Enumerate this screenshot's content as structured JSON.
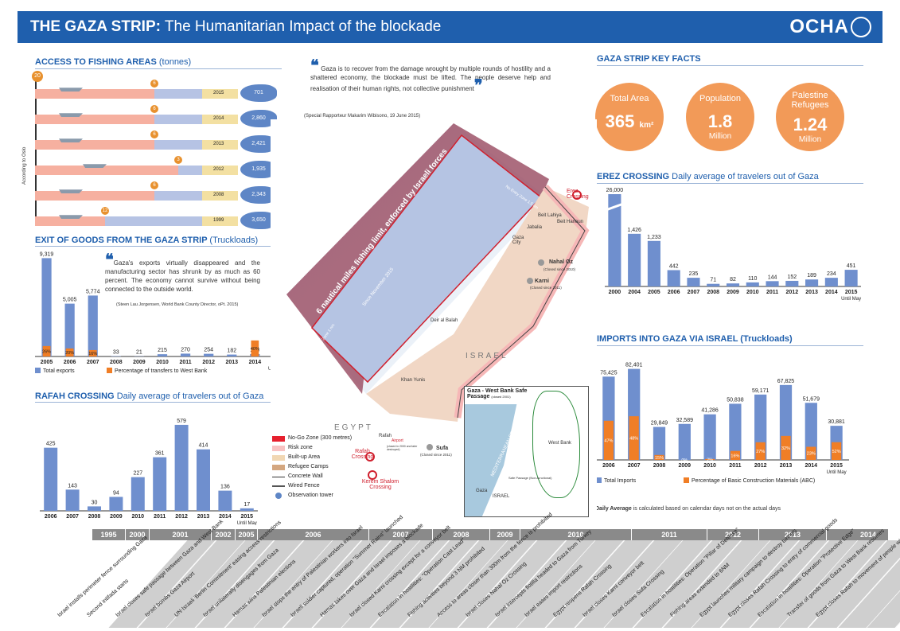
{
  "header": {
    "title_bold": "THE GAZA STRIP:",
    "title_rest": "The Humanitarian Impact of the blockade",
    "logo": "OCHA"
  },
  "fishing": {
    "title": "ACCESS TO FISHING AREAS",
    "unit": "(tonnes)",
    "ylabel": "According to Oslo",
    "start_marker": "20",
    "rows": [
      {
        "year": "2015",
        "tonnes": "701",
        "marker": "6"
      },
      {
        "year": "2014",
        "tonnes": "2,860",
        "marker": "6"
      },
      {
        "year": "2013",
        "tonnes": "2,421",
        "marker": "6"
      },
      {
        "year": "2012",
        "tonnes": "1,935",
        "marker": "3"
      },
      {
        "year": "2008",
        "tonnes": "2,343",
        "marker": "6"
      },
      {
        "year": "1999",
        "tonnes": "3,650",
        "marker": "12"
      }
    ]
  },
  "quote1": {
    "text": "Gaza is to recover from the damage wrought by multiple rounds of hostility and a shattered economy, the blockade must be lifted. The people deserve help and realisation of their human rights, not collective punishment",
    "source": "(Special Rapporteur Makarim Wibisono, 19 June 2015)"
  },
  "exit_goods": {
    "title": "EXIT OF GOODS FROM THE GAZA STRIP",
    "unit": "(Truckloads)",
    "quote": "Gaza's exports virtually disappeared and the manufacturing sector has shrunk by as much as 60 percent. The economy cannot survive without being connected to the outside world.",
    "source": "(Steen Lau Jorgensen, World Bank County Director, oPt. 2015)",
    "legend_a": "Total exports",
    "legend_b": "Percentage of transfers to West Bank",
    "until": "Until May"
  },
  "rafah": {
    "title": "RAFAH CROSSING",
    "subtitle": "Daily average of travelers out of Gaza",
    "until": "Until May"
  },
  "key_facts": {
    "title": "GAZA STRIP KEY FACTS",
    "area_label": "Total Area",
    "area_value": "365",
    "area_unit": "km²",
    "pop_label": "Population",
    "pop_value": "1.8",
    "pop_unit": "Million",
    "ref_label": "Palestine Refugees",
    "ref_value": "1.24",
    "ref_unit": "Million"
  },
  "erez": {
    "title": "EREZ CROSSING",
    "subtitle": "Daily average of travelers out of Gaza",
    "until": "Until May"
  },
  "imports": {
    "title": "IMPORTS INTO GAZA VIA ISRAEL (Truckloads)",
    "legend_a": "Total Imports",
    "legend_b": "Percentage of Basic Construction Materials (ABC)",
    "until": "Until May"
  },
  "daily_note": {
    "bold": "Daily Average",
    "rest": " is calculated based on calendar days not on the actual days"
  },
  "map": {
    "limit_label": "6 nautical miles fishing limit, enforced by Israeli forces",
    "since": "Since November 2015",
    "no_entry_top": "No Entry Zone 1.5 nm",
    "no_entry_bottom": "No Entry Zone 1 nm",
    "israel": "ISRAEL",
    "egypt": "EGYPT",
    "places": [
      "Beit Lahiya",
      "Beit Hanoun",
      "Jabalia",
      "Gaza City",
      "Deir al Balah",
      "Khan Yunis",
      "Rafah"
    ],
    "erez": "Erez Crossing",
    "nahal_oz": "Nahal Oz",
    "nahal_oz_note": "(Closed since 2010)",
    "karni": "Karni",
    "karni_note": "(Closed since 2011)",
    "sufa": "Sufa",
    "sufa_note": "(Closed since 2011)",
    "rafah_crossing": "Rafah Crossing",
    "kerem": "Kerem Shalom Crossing",
    "airport": "Airport",
    "airport_note": "(closed in 2000 and later destroyed)",
    "legend": [
      "No-Go Zone (300 metres)",
      "Risk zone",
      "Built-up Area",
      "Refugee Camps",
      "Concrete Wall",
      "Wired Fence",
      "Observation tower"
    ],
    "inset_title": "Gaza - West Bank Safe Passage",
    "inset_note": "(closed 2001)",
    "inset_sea": "MEDITERRANEAN SEA",
    "inset_wb": "West Bank",
    "inset_israel": "ISRAEL",
    "inset_gaza": "Gaza",
    "inset_route": "Safe Passage (Non-functional)"
  },
  "timeline": {
    "years": [
      "1995",
      "2000",
      "2001",
      "2002",
      "2005",
      "2006",
      "2007",
      "2008",
      "2009",
      "2010",
      "2011",
      "2012",
      "2013",
      "2014"
    ],
    "events": [
      "Israel installs perimeter fence surrounding Gaza",
      "Second intifada starts",
      "Israel closes safe passage between Gaza and West Bank",
      "Israel bombs Gaza Airport",
      "UN-Israeli 'Berlin Commitment' easing access restrictions",
      "Israel unilaterally disengages from Gaza",
      "Hamas wins Palestinian elections",
      "Israel stops the entry of Palestinian workers into Israel",
      "Israeli soldier captured, operation \"Summer Rains\" launched",
      "Hamas takes over Gaza and Israel imposes a blockade",
      "Israel closed Karni crossing except for a conveyor belt",
      "Escalation in hostilities: \"Operation Cast Lead\"",
      "Fishing activities beyond 3 NM prohibited",
      "Access to areas closer than 300m from the fence is prohibited",
      "Israel closes Nahal Oz Crossing",
      "Israel intercepts flotilla headed to Gaza from Turkey",
      "Israel eases import restrictions",
      "Egypt reopens Rafah Crossing",
      "Israel closes Karni conveyor belt",
      "Israel closes Sufa Crossing",
      "Escalation in hostilities: Operation \"Pillar of Defense\"",
      "Fishing areas extended to 6NM",
      "Egypt launches military campaign to destroy tunnels",
      "Egypt closes Rafah Crossing to entry of commercial goods",
      "Escalation in hostilities: Operation \"Protective Edge\"",
      "Transfer of goods from Gaza to West Bank resumes",
      "Egypt closes Rafah to movement of people with exceptions"
    ]
  },
  "chart_data": [
    {
      "type": "bar",
      "title": "EXIT OF GOODS FROM THE GAZA STRIP (Truckloads)",
      "categories": [
        "2005",
        "2006",
        "2007",
        "2008",
        "2009",
        "2010",
        "2011",
        "2012",
        "2013",
        "2014",
        "2015"
      ],
      "series": [
        {
          "name": "Total exports",
          "values": [
            9319,
            5005,
            5774,
            33,
            21,
            215,
            270,
            254,
            182,
            228,
            418
          ]
        },
        {
          "name": "Percentage of transfers to West Bank",
          "values": [
            26,
            20,
            16,
            null,
            null,
            null,
            null,
            null,
            null,
            40,
            68
          ]
        }
      ],
      "value_labels": [
        "9,319",
        "5,005",
        "5,774",
        "33",
        "21",
        "215",
        "270",
        "254",
        "182",
        "228",
        "418"
      ],
      "pct_labels": [
        "26%",
        "20%",
        "16%",
        "",
        "",
        "",
        "",
        "",
        "",
        "40%",
        "68%"
      ],
      "ylim": [
        0,
        9500
      ]
    },
    {
      "type": "bar",
      "title": "RAFAH CROSSING Daily average of travelers out of Gaza",
      "categories": [
        "2006",
        "2007",
        "2008",
        "2009",
        "2010",
        "2011",
        "2012",
        "2013",
        "2014",
        "2015"
      ],
      "values": [
        425,
        143,
        30,
        94,
        227,
        361,
        579,
        414,
        136,
        17
      ],
      "ylim": [
        0,
        600
      ]
    },
    {
      "type": "bar",
      "title": "EREZ CROSSING Daily average of travelers out of Gaza",
      "categories": [
        "2000",
        "2004",
        "2005",
        "2006",
        "2007",
        "2008",
        "2009",
        "2010",
        "2011",
        "2012",
        "2013",
        "2014",
        "2015"
      ],
      "values": [
        26000,
        1426,
        1233,
        442,
        235,
        71,
        82,
        110,
        144,
        152,
        189,
        234,
        451
      ],
      "value_labels": [
        "26,000",
        "1,426",
        "1,233",
        "442",
        "235",
        "71",
        "82",
        "110",
        "144",
        "152",
        "189",
        "234",
        "451"
      ],
      "axis_break": true,
      "ylim": [
        0,
        2500
      ]
    },
    {
      "type": "bar",
      "title": "IMPORTS INTO GAZA VIA ISRAEL (Truckloads)",
      "categories": [
        "2006",
        "2007",
        "2008",
        "2009",
        "2010",
        "2011",
        "2012",
        "2013",
        "2014",
        "2015"
      ],
      "series": [
        {
          "name": "Total Imports",
          "values": [
            75425,
            82401,
            29849,
            32589,
            41286,
            50838,
            59171,
            67825,
            51679,
            30881
          ]
        },
        {
          "name": "Percentage of Basic Construction Materials (ABC)",
          "values": [
            47,
            48,
            15,
            0,
            2,
            16,
            27,
            32,
            23,
            52
          ]
        }
      ],
      "value_labels": [
        "75,425",
        "82,401",
        "29,849",
        "32,589",
        "41,286",
        "50,838",
        "59,171",
        "67,825",
        "51,679",
        "30,881"
      ],
      "pct_labels": [
        "47%",
        "48%",
        "15%",
        "0%",
        "2%",
        "16%",
        "27%",
        "32%",
        "23%",
        "52%"
      ],
      "ylim": [
        0,
        85000
      ]
    }
  ]
}
